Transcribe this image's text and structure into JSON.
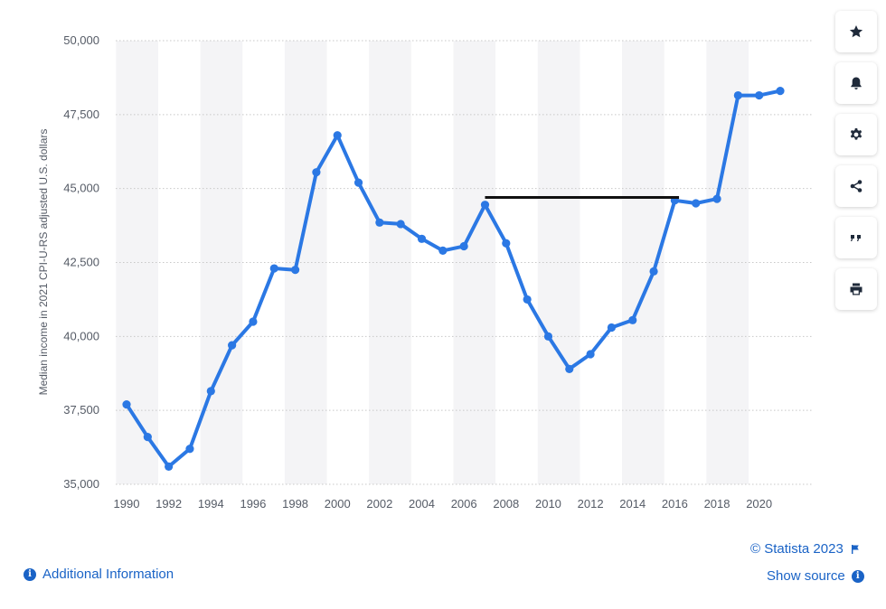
{
  "chart_data": {
    "type": "line",
    "title": "",
    "xlabel": "",
    "ylabel": "Median income in 2021 CPI-U-RS adjusted U.S. dollars",
    "x": [
      1990,
      1991,
      1992,
      1993,
      1994,
      1995,
      1996,
      1997,
      1998,
      1999,
      2000,
      2001,
      2002,
      2003,
      2004,
      2005,
      2006,
      2007,
      2008,
      2009,
      2010,
      2011,
      2012,
      2013,
      2014,
      2015,
      2016,
      2017,
      2018,
      2019,
      2020,
      2021
    ],
    "series": [
      {
        "name": "",
        "color": "#2b78e4",
        "values": [
          37700,
          36600,
          35600,
          36200,
          38150,
          39700,
          40500,
          42300,
          42250,
          45550,
          46800,
          45200,
          43850,
          43800,
          43300,
          42900,
          43050,
          44450,
          43150,
          41250,
          40000,
          38900,
          39400,
          40300,
          40550,
          42200,
          44600,
          44500,
          44650,
          48150,
          48150,
          48300
        ]
      }
    ],
    "x_tick_labels": [
      "1990",
      "1992",
      "1994",
      "1996",
      "1998",
      "2000",
      "2002",
      "2004",
      "2006",
      "2008",
      "2010",
      "2012",
      "2014",
      "2016",
      "2018",
      "2020"
    ],
    "y_tick_labels": [
      "35,000",
      "37,500",
      "40,000",
      "42,500",
      "45,000",
      "47,500",
      "50,000"
    ],
    "y_ticks": [
      35000,
      37500,
      40000,
      42500,
      45000,
      47500,
      50000
    ],
    "ylim": [
      35000,
      50000
    ],
    "xlim": [
      1989.5,
      2021.5
    ],
    "grid": "horizontal dotted",
    "shaded_bands": "alternating every two years",
    "annotation": {
      "type": "horizontal-line",
      "x_start": 2007,
      "x_end": 2016.2,
      "y": 44700,
      "color": "#111111"
    }
  },
  "toolbar": {
    "buttons": [
      "star-icon",
      "bell-icon",
      "gear-icon",
      "share-icon",
      "quote-icon",
      "print-icon"
    ]
  },
  "footer": {
    "credit": "© Statista 2023",
    "additional_info": "Additional Information",
    "show_source": "Show source"
  },
  "colors": {
    "link": "#1a63c6",
    "band": "#f4f4f6",
    "grid": "#c8c8c8"
  }
}
